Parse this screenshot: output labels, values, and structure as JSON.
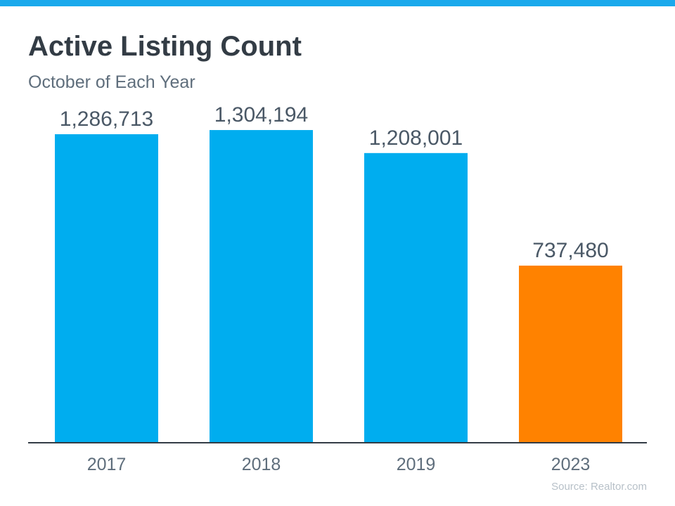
{
  "colors": {
    "top_bar": "#1aa9ec",
    "bar": "#00adef",
    "highlight": "#ff8200",
    "axis": "#333c45"
  },
  "chart_data": {
    "type": "bar",
    "title": "Active Listing Count",
    "subtitle": "October of Each Year",
    "categories": [
      "2017",
      "2018",
      "2019",
      "2023"
    ],
    "values": [
      1286713,
      1304194,
      1208001,
      737480
    ],
    "value_labels": [
      "1,286,713",
      "1,304,194",
      "1,208,001",
      "737,480"
    ],
    "highlight_index": 3,
    "ylim": [
      0,
      1500000
    ],
    "grid": false,
    "source": "Source: Realtor.com"
  }
}
